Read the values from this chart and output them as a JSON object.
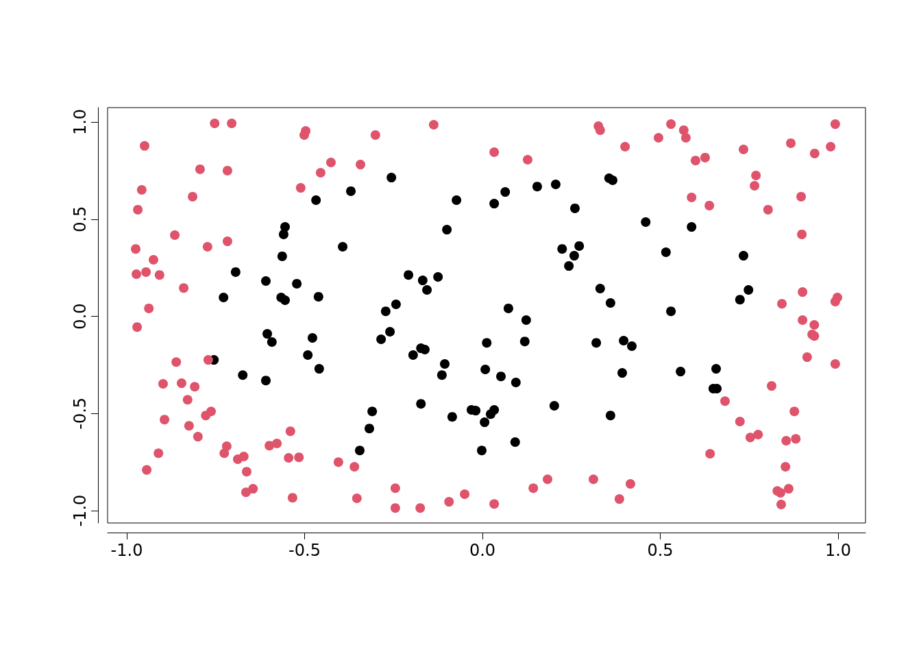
{
  "chart_data": {
    "type": "scatter",
    "marker": "circle",
    "xlim": [
      -1.054,
      1.077
    ],
    "ylim": [
      -1.063,
      1.074
    ],
    "xticks": [
      {
        "value": -1,
        "label": "-1.0"
      },
      -0.5,
      {
        "value": 0,
        "label": "0.0"
      },
      0.5,
      {
        "value": 1,
        "label": "1.0"
      }
    ],
    "yticks": [
      {
        "value": -1,
        "label": "-1.0"
      },
      -0.5,
      {
        "value": 0,
        "label": "0.0"
      },
      0.5,
      {
        "value": 1,
        "label": "1.0"
      }
    ],
    "series": [
      {
        "color": "#000000",
        "x": [
          -0.755,
          -0.728,
          -0.694,
          -0.674,
          -0.609,
          -0.609,
          -0.605,
          -0.592,
          -0.563,
          -0.566,
          -0.555,
          -0.559,
          -0.555,
          -0.522,
          -0.491,
          -0.478,
          -0.468,
          -0.461,
          -0.459,
          -0.393,
          -0.37,
          -0.345,
          -0.31,
          -0.318,
          -0.285,
          -0.272,
          -0.26,
          -0.256,
          -0.243,
          -0.208,
          -0.195,
          -0.173,
          -0.173,
          -0.168,
          -0.162,
          -0.156,
          -0.125,
          -0.114,
          -0.106,
          -0.1,
          -0.085,
          -0.073,
          -0.031,
          -0.019,
          -0.002,
          0.006,
          0.008,
          0.012,
          0.023,
          0.033,
          0.033,
          0.052,
          0.064,
          0.073,
          0.092,
          0.094,
          0.119,
          0.123,
          0.154,
          0.202,
          0.206,
          0.224,
          0.243,
          0.258,
          0.26,
          0.272,
          0.32,
          0.331,
          0.356,
          0.366,
          0.36,
          0.36,
          0.393,
          0.397,
          0.42,
          0.459,
          0.516,
          0.53,
          0.557,
          0.588,
          0.649,
          0.659,
          0.657,
          0.724,
          0.734,
          0.748
        ],
        "values": [
          -0.224,
          0.097,
          0.228,
          -0.302,
          0.182,
          -0.33,
          -0.09,
          -0.132,
          0.309,
          0.097,
          0.083,
          0.422,
          0.46,
          0.168,
          -0.199,
          -0.111,
          0.598,
          0.101,
          -0.27,
          0.358,
          0.644,
          -0.69,
          -0.489,
          -0.577,
          -0.118,
          0.026,
          -0.079,
          0.714,
          0.062,
          0.213,
          -0.199,
          -0.45,
          -0.164,
          0.185,
          -0.171,
          0.136,
          0.203,
          -0.302,
          -0.245,
          0.446,
          -0.517,
          0.598,
          -0.481,
          -0.485,
          -0.69,
          -0.545,
          -0.273,
          -0.136,
          -0.503,
          -0.481,
          0.58,
          -0.309,
          0.64,
          0.041,
          -0.647,
          -0.34,
          -0.129,
          -0.019,
          0.668,
          -0.46,
          0.679,
          0.347,
          0.259,
          0.312,
          0.556,
          0.362,
          -0.136,
          0.143,
          0.711,
          0.7,
          0.069,
          -0.51,
          -0.291,
          -0.125,
          -0.153,
          0.485,
          0.33,
          0.026,
          -0.284,
          0.46,
          -0.372,
          -0.372,
          -0.27,
          0.086,
          0.312,
          0.136
        ]
      },
      {
        "color": "#df536b",
        "x": [
          -0.975,
          -0.973,
          -0.971,
          -0.969,
          -0.958,
          -0.95,
          -0.946,
          -0.944,
          -0.938,
          -0.925,
          -0.911,
          -0.908,
          -0.898,
          -0.894,
          -0.865,
          -0.861,
          -0.846,
          -0.84,
          -0.829,
          -0.825,
          -0.815,
          -0.809,
          -0.8,
          -0.794,
          -0.778,
          -0.773,
          -0.771,
          -0.763,
          -0.753,
          -0.726,
          -0.719,
          -0.717,
          -0.717,
          -0.705,
          -0.688,
          -0.671,
          -0.665,
          -0.663,
          -0.645,
          -0.599,
          -0.578,
          -0.545,
          -0.54,
          -0.534,
          -0.516,
          -0.511,
          -0.501,
          -0.497,
          -0.455,
          -0.426,
          -0.405,
          -0.36,
          -0.353,
          -0.343,
          -0.301,
          -0.245,
          -0.245,
          -0.175,
          -0.137,
          -0.094,
          -0.05,
          0.033,
          0.033,
          0.127,
          0.143,
          0.183,
          0.312,
          0.326,
          0.331,
          0.385,
          0.401,
          0.416,
          0.495,
          0.53,
          0.566,
          0.572,
          0.588,
          0.599,
          0.626,
          0.638,
          0.64,
          0.682,
          0.724,
          0.734,
          0.753,
          0.765,
          0.769,
          0.775,
          0.803,
          0.813,
          0.829,
          0.838,
          0.84,
          0.842,
          0.852,
          0.854,
          0.861,
          0.867,
          0.877,
          0.881,
          0.896,
          0.898,
          0.9,
          0.9,
          0.913,
          0.927,
          0.933,
          0.933,
          0.934,
          0.979,
          0.992,
          0.992,
          0.992,
          0.998
        ],
        "values": [
          0.347,
          0.217,
          -0.055,
          0.549,
          0.651,
          0.877,
          0.228,
          -0.79,
          0.041,
          0.291,
          -0.704,
          0.213,
          -0.347,
          -0.531,
          0.418,
          -0.235,
          -0.344,
          0.146,
          -0.429,
          -0.563,
          0.616,
          -0.362,
          -0.619,
          0.757,
          -0.51,
          0.358,
          -0.224,
          -0.489,
          0.993,
          -0.704,
          -0.668,
          0.75,
          0.386,
          0.993,
          -0.735,
          -0.721,
          -0.905,
          -0.799,
          -0.887,
          -0.665,
          -0.654,
          -0.728,
          -0.591,
          -0.933,
          -0.725,
          0.661,
          0.933,
          0.954,
          0.739,
          0.792,
          -0.75,
          -0.774,
          -0.936,
          0.781,
          0.933,
          -0.884,
          -0.986,
          -0.986,
          0.986,
          -0.954,
          -0.915,
          0.845,
          -0.965,
          0.806,
          -0.884,
          -0.838,
          -0.838,
          0.979,
          0.958,
          -0.94,
          0.873,
          -0.862,
          0.919,
          0.989,
          0.958,
          0.919,
          0.612,
          0.802,
          0.817,
          0.57,
          -0.707,
          -0.436,
          -0.541,
          0.859,
          -0.623,
          0.672,
          0.725,
          -0.608,
          0.549,
          -0.358,
          -0.898,
          -0.908,
          -0.968,
          0.065,
          -0.774,
          -0.64,
          -0.887,
          0.891,
          -0.489,
          -0.63,
          0.616,
          0.422,
          -0.019,
          0.125,
          -0.21,
          -0.093,
          -0.101,
          -0.044,
          0.838,
          0.873,
          -0.245,
          0.076,
          0.989,
          0.097
        ]
      }
    ]
  }
}
